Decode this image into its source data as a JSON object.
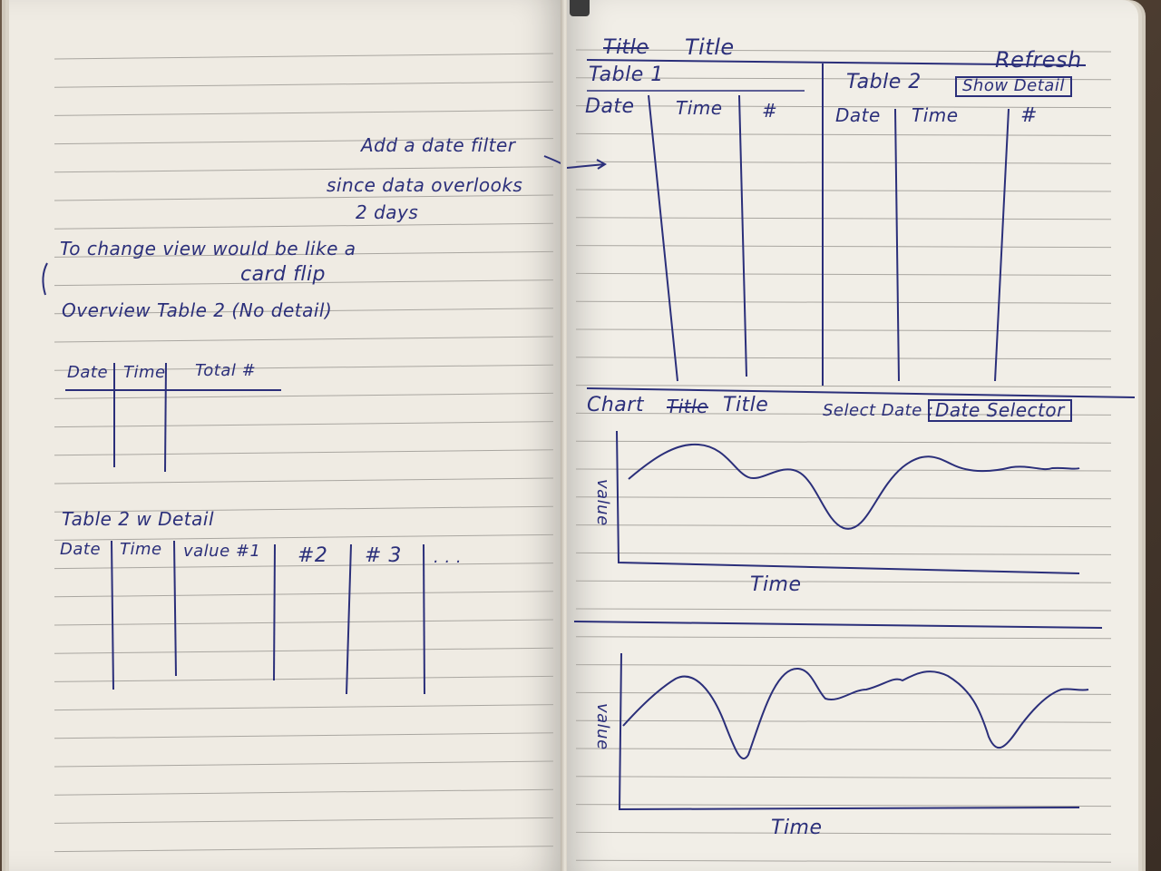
{
  "left_page": {
    "note": {
      "line1": "Add a date filter",
      "line2": "since data overlooks",
      "line3": "2 days"
    },
    "view_note": {
      "line1": "To change view would be like a",
      "line2": "card flip"
    },
    "overview": {
      "title": "Overview Table 2 (No detail)",
      "columns": [
        "Date",
        "Time",
        "Total #"
      ]
    },
    "detail": {
      "title": "Table 2 w Detail",
      "columns": [
        "Date",
        "Time",
        "value #1",
        "#2",
        "# 3",
        ". . ."
      ]
    }
  },
  "right_page": {
    "header": {
      "struck_word": "Title",
      "title": "Title",
      "refresh": "Refresh"
    },
    "table1": {
      "label": "Table 1",
      "columns": [
        "Date",
        "Time",
        "#"
      ]
    },
    "table2": {
      "label": "Table 2",
      "show_detail": "Show Detail",
      "columns": [
        "Date",
        "Time",
        "#"
      ]
    },
    "chart1": {
      "title_prefix": "Chart",
      "title_struck": "Title",
      "title": "Title",
      "select_date_label": "Select Date :",
      "date_selector": "Date Selector",
      "ylabel": "value",
      "xlabel": "Time"
    },
    "chart2": {
      "ylabel": "value",
      "xlabel": "Time"
    }
  },
  "colors": {
    "ink": "#2b2f7a",
    "rule": "#a9a6a0",
    "paper_left": "#efebe3",
    "paper_right": "#f1eee7"
  }
}
